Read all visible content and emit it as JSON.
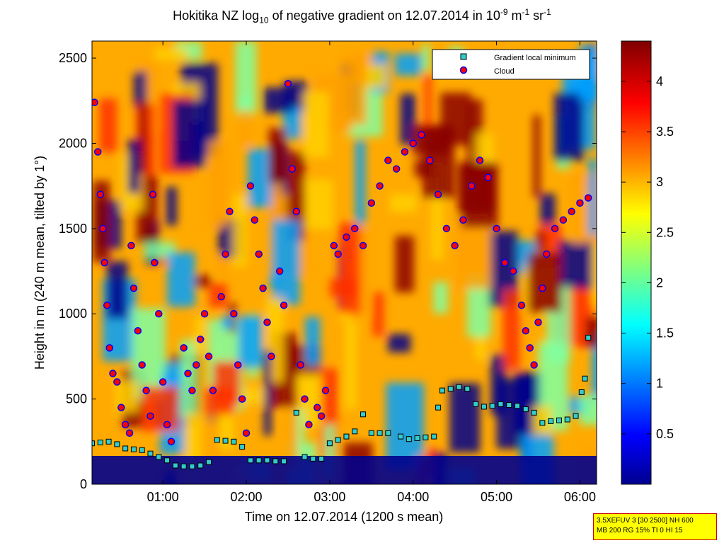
{
  "chart_data": {
    "type": "heatmap",
    "title_parts": {
      "pre": "Hokitika NZ log",
      "sub": "10",
      "mid": " of negative gradient on 12.07.2014 in 10",
      "sup1": "-9",
      "mid2": " m",
      "sup2": "-1",
      "mid3": " sr",
      "sup3": "-1"
    },
    "xlabel": "Time on 12.07.2014 (1200 s mean)",
    "ylabel": "Height in m (240 m mean, tilted by 1°)",
    "xlim": [
      0.15,
      6.2
    ],
    "ylim": [
      0,
      2600
    ],
    "x_ticks": [
      {
        "v": 1,
        "label": "01:00"
      },
      {
        "v": 2,
        "label": "02:00"
      },
      {
        "v": 3,
        "label": "03:00"
      },
      {
        "v": 4,
        "label": "04:00"
      },
      {
        "v": 5,
        "label": "05:00"
      },
      {
        "v": 6,
        "label": "06:00"
      }
    ],
    "y_ticks": [
      {
        "v": 0,
        "label": "0"
      },
      {
        "v": 500,
        "label": "500"
      },
      {
        "v": 1000,
        "label": "1000"
      },
      {
        "v": 1500,
        "label": "1500"
      },
      {
        "v": 2000,
        "label": "2000"
      },
      {
        "v": 2500,
        "label": "2500"
      }
    ],
    "colorbar": {
      "range": [
        0,
        4.4
      ],
      "ticks": [
        {
          "v": 0.5,
          "label": "0.5"
        },
        {
          "v": 1,
          "label": "1"
        },
        {
          "v": 1.5,
          "label": "1.5"
        },
        {
          "v": 2,
          "label": "2"
        },
        {
          "v": 2.5,
          "label": "2.5"
        },
        {
          "v": 3,
          "label": "3"
        },
        {
          "v": 3.5,
          "label": "3.5"
        },
        {
          "v": 4,
          "label": "4"
        }
      ],
      "colormap": "jet"
    },
    "legend": {
      "placement": "top-right",
      "entries": [
        {
          "label": "Gradient local minimum",
          "marker": "square",
          "color": "#33cccc"
        },
        {
          "label": "Cloud",
          "marker": "circle",
          "color": "#ff0000"
        }
      ]
    },
    "series": [
      {
        "name": "Gradient local minimum",
        "marker": "square",
        "color": "#33cccc",
        "points": [
          [
            0.15,
            240
          ],
          [
            0.25,
            245
          ],
          [
            0.35,
            250
          ],
          [
            0.45,
            235
          ],
          [
            0.55,
            210
          ],
          [
            0.65,
            205
          ],
          [
            0.75,
            200
          ],
          [
            0.85,
            180
          ],
          [
            0.95,
            160
          ],
          [
            1.05,
            140
          ],
          [
            1.15,
            110
          ],
          [
            1.25,
            105
          ],
          [
            1.35,
            105
          ],
          [
            1.45,
            110
          ],
          [
            1.55,
            130
          ],
          [
            1.65,
            260
          ],
          [
            1.75,
            255
          ],
          [
            1.85,
            250
          ],
          [
            1.95,
            220
          ],
          [
            2.05,
            140
          ],
          [
            2.15,
            140
          ],
          [
            2.25,
            140
          ],
          [
            2.35,
            135
          ],
          [
            2.45,
            135
          ],
          [
            2.6,
            420
          ],
          [
            2.7,
            160
          ],
          [
            2.8,
            150
          ],
          [
            2.9,
            150
          ],
          [
            3.0,
            240
          ],
          [
            3.1,
            260
          ],
          [
            3.2,
            280
          ],
          [
            3.3,
            310
          ],
          [
            3.4,
            410
          ],
          [
            3.5,
            300
          ],
          [
            3.6,
            300
          ],
          [
            3.7,
            300
          ],
          [
            3.85,
            280
          ],
          [
            3.95,
            265
          ],
          [
            4.05,
            270
          ],
          [
            4.15,
            275
          ],
          [
            4.25,
            280
          ],
          [
            4.3,
            450
          ],
          [
            4.35,
            550
          ],
          [
            4.45,
            560
          ],
          [
            4.55,
            570
          ],
          [
            4.65,
            560
          ],
          [
            4.75,
            470
          ],
          [
            4.85,
            455
          ],
          [
            4.95,
            460
          ],
          [
            5.05,
            470
          ],
          [
            5.15,
            465
          ],
          [
            5.25,
            460
          ],
          [
            5.35,
            440
          ],
          [
            5.45,
            420
          ],
          [
            5.55,
            360
          ],
          [
            5.65,
            370
          ],
          [
            5.75,
            375
          ],
          [
            5.85,
            380
          ],
          [
            5.95,
            400
          ],
          [
            6.02,
            540
          ],
          [
            6.06,
            620
          ],
          [
            6.1,
            860
          ]
        ]
      },
      {
        "name": "Cloud",
        "marker": "circle",
        "color": "#ff0000",
        "points": [
          [
            0.18,
            2240
          ],
          [
            0.22,
            1950
          ],
          [
            0.25,
            1700
          ],
          [
            0.28,
            1500
          ],
          [
            0.3,
            1300
          ],
          [
            0.33,
            1050
          ],
          [
            0.36,
            800
          ],
          [
            0.4,
            650
          ],
          [
            0.45,
            600
          ],
          [
            0.5,
            450
          ],
          [
            0.55,
            350
          ],
          [
            0.6,
            300
          ],
          [
            0.62,
            1400
          ],
          [
            0.65,
            1150
          ],
          [
            0.7,
            900
          ],
          [
            0.75,
            700
          ],
          [
            0.8,
            550
          ],
          [
            0.85,
            400
          ],
          [
            0.88,
            1700
          ],
          [
            0.9,
            1300
          ],
          [
            0.95,
            1000
          ],
          [
            1.0,
            600
          ],
          [
            1.05,
            350
          ],
          [
            1.1,
            250
          ],
          [
            1.25,
            800
          ],
          [
            1.3,
            650
          ],
          [
            1.35,
            550
          ],
          [
            1.4,
            700
          ],
          [
            1.45,
            850
          ],
          [
            1.5,
            1000
          ],
          [
            1.55,
            750
          ],
          [
            1.6,
            550
          ],
          [
            1.7,
            1100
          ],
          [
            1.75,
            1350
          ],
          [
            1.8,
            1600
          ],
          [
            1.85,
            1000
          ],
          [
            1.9,
            700
          ],
          [
            1.95,
            500
          ],
          [
            2.0,
            300
          ],
          [
            2.05,
            1750
          ],
          [
            2.1,
            1550
          ],
          [
            2.15,
            1350
          ],
          [
            2.2,
            1150
          ],
          [
            2.25,
            950
          ],
          [
            2.3,
            750
          ],
          [
            2.4,
            1250
          ],
          [
            2.45,
            1050
          ],
          [
            2.5,
            2350
          ],
          [
            2.55,
            1850
          ],
          [
            2.6,
            1600
          ],
          [
            2.65,
            700
          ],
          [
            2.7,
            500
          ],
          [
            2.75,
            350
          ],
          [
            2.85,
            450
          ],
          [
            2.9,
            400
          ],
          [
            2.95,
            550
          ],
          [
            3.05,
            1400
          ],
          [
            3.1,
            1350
          ],
          [
            3.2,
            1450
          ],
          [
            3.3,
            1500
          ],
          [
            3.4,
            1400
          ],
          [
            3.5,
            1650
          ],
          [
            3.6,
            1750
          ],
          [
            3.7,
            1900
          ],
          [
            3.8,
            1850
          ],
          [
            3.9,
            1950
          ],
          [
            4.0,
            2000
          ],
          [
            4.1,
            2050
          ],
          [
            4.2,
            1900
          ],
          [
            4.3,
            1700
          ],
          [
            4.4,
            1500
          ],
          [
            4.5,
            1400
          ],
          [
            4.6,
            1550
          ],
          [
            4.7,
            1750
          ],
          [
            4.8,
            1900
          ],
          [
            4.9,
            1800
          ],
          [
            5.0,
            1500
          ],
          [
            5.1,
            1300
          ],
          [
            5.2,
            1250
          ],
          [
            5.3,
            1050
          ],
          [
            5.35,
            900
          ],
          [
            5.4,
            800
          ],
          [
            5.45,
            700
          ],
          [
            5.5,
            950
          ],
          [
            5.55,
            1150
          ],
          [
            5.6,
            1350
          ],
          [
            5.7,
            1500
          ],
          [
            5.8,
            1550
          ],
          [
            5.9,
            1600
          ],
          [
            6.0,
            1650
          ],
          [
            6.1,
            1680
          ]
        ]
      }
    ]
  },
  "info_box": {
    "line1": "3.5XEFUV 3 [30 2500] NH 600",
    "line2": "MB 200 RG 15% TI 0 HI 15"
  },
  "colors": {
    "background": "#ffffff",
    "low_field": "#00008b",
    "cloud_fill": "#ff0000",
    "cloud_edge": "#0000ff",
    "minimum_fill": "#33cccc",
    "info_bg": "#ffff00"
  }
}
